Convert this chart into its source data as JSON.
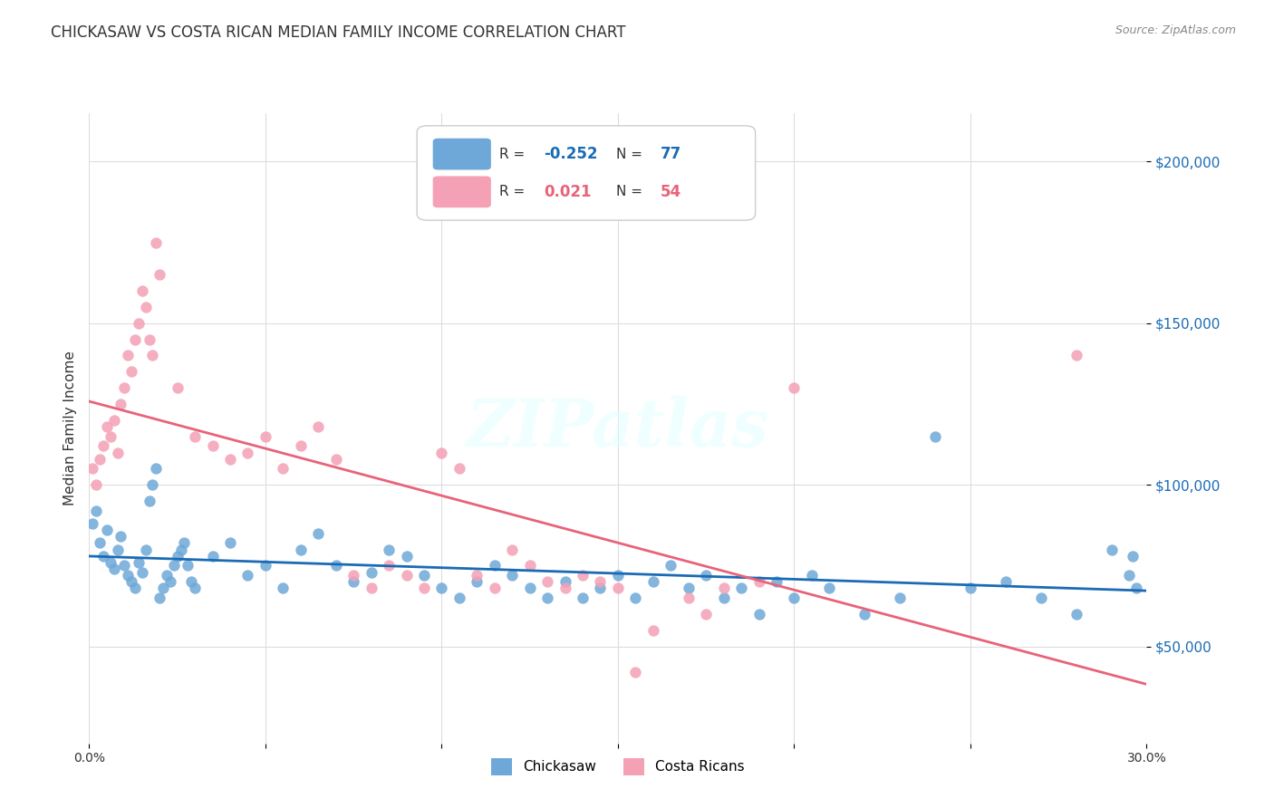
{
  "title": "CHICKASAW VS COSTA RICAN MEDIAN FAMILY INCOME CORRELATION CHART",
  "source": "Source: ZipAtlas.com",
  "ylabel": "Median Family Income",
  "ytick_labels": [
    "$50,000",
    "$100,000",
    "$150,000",
    "$200,000"
  ],
  "ytick_values": [
    50000,
    100000,
    150000,
    200000
  ],
  "ylim": [
    20000,
    215000
  ],
  "xlim": [
    0.0,
    0.3
  ],
  "legend_blue_r": "-0.252",
  "legend_blue_n": "77",
  "legend_pink_r": "0.021",
  "legend_pink_n": "54",
  "blue_color": "#6ea8d8",
  "pink_color": "#f4a0b5",
  "blue_line_color": "#1a6bb5",
  "pink_line_color": "#e8637a",
  "watermark": "ZIPatlas",
  "background_color": "#ffffff",
  "blue_scatter_x": [
    0.001,
    0.002,
    0.003,
    0.004,
    0.005,
    0.006,
    0.007,
    0.008,
    0.009,
    0.01,
    0.011,
    0.012,
    0.013,
    0.014,
    0.015,
    0.016,
    0.017,
    0.018,
    0.019,
    0.02,
    0.021,
    0.022,
    0.023,
    0.024,
    0.025,
    0.026,
    0.027,
    0.028,
    0.029,
    0.03,
    0.035,
    0.04,
    0.045,
    0.05,
    0.055,
    0.06,
    0.065,
    0.07,
    0.075,
    0.08,
    0.085,
    0.09,
    0.095,
    0.1,
    0.105,
    0.11,
    0.115,
    0.12,
    0.125,
    0.13,
    0.135,
    0.14,
    0.145,
    0.15,
    0.155,
    0.16,
    0.165,
    0.17,
    0.175,
    0.18,
    0.185,
    0.19,
    0.195,
    0.2,
    0.205,
    0.21,
    0.22,
    0.23,
    0.24,
    0.25,
    0.26,
    0.27,
    0.28,
    0.29,
    0.295,
    0.296,
    0.297
  ],
  "blue_scatter_y": [
    88000,
    92000,
    82000,
    78000,
    86000,
    76000,
    74000,
    80000,
    84000,
    75000,
    72000,
    70000,
    68000,
    76000,
    73000,
    80000,
    95000,
    100000,
    105000,
    65000,
    68000,
    72000,
    70000,
    75000,
    78000,
    80000,
    82000,
    75000,
    70000,
    68000,
    78000,
    82000,
    72000,
    75000,
    68000,
    80000,
    85000,
    75000,
    70000,
    73000,
    80000,
    78000,
    72000,
    68000,
    65000,
    70000,
    75000,
    72000,
    68000,
    65000,
    70000,
    65000,
    68000,
    72000,
    65000,
    70000,
    75000,
    68000,
    72000,
    65000,
    68000,
    60000,
    70000,
    65000,
    72000,
    68000,
    60000,
    65000,
    115000,
    68000,
    70000,
    65000,
    60000,
    80000,
    72000,
    78000,
    68000
  ],
  "pink_scatter_x": [
    0.001,
    0.002,
    0.003,
    0.004,
    0.005,
    0.006,
    0.007,
    0.008,
    0.009,
    0.01,
    0.011,
    0.012,
    0.013,
    0.014,
    0.015,
    0.016,
    0.017,
    0.018,
    0.019,
    0.02,
    0.025,
    0.03,
    0.035,
    0.04,
    0.045,
    0.05,
    0.055,
    0.06,
    0.065,
    0.07,
    0.075,
    0.08,
    0.085,
    0.09,
    0.095,
    0.1,
    0.105,
    0.11,
    0.115,
    0.12,
    0.125,
    0.13,
    0.135,
    0.14,
    0.145,
    0.15,
    0.155,
    0.16,
    0.17,
    0.175,
    0.18,
    0.19,
    0.2,
    0.28
  ],
  "pink_scatter_y": [
    105000,
    100000,
    108000,
    112000,
    118000,
    115000,
    120000,
    110000,
    125000,
    130000,
    140000,
    135000,
    145000,
    150000,
    160000,
    155000,
    145000,
    140000,
    175000,
    165000,
    130000,
    115000,
    112000,
    108000,
    110000,
    115000,
    105000,
    112000,
    118000,
    108000,
    72000,
    68000,
    75000,
    72000,
    68000,
    110000,
    105000,
    72000,
    68000,
    80000,
    75000,
    70000,
    68000,
    72000,
    70000,
    68000,
    42000,
    55000,
    65000,
    60000,
    68000,
    70000,
    130000,
    140000
  ]
}
